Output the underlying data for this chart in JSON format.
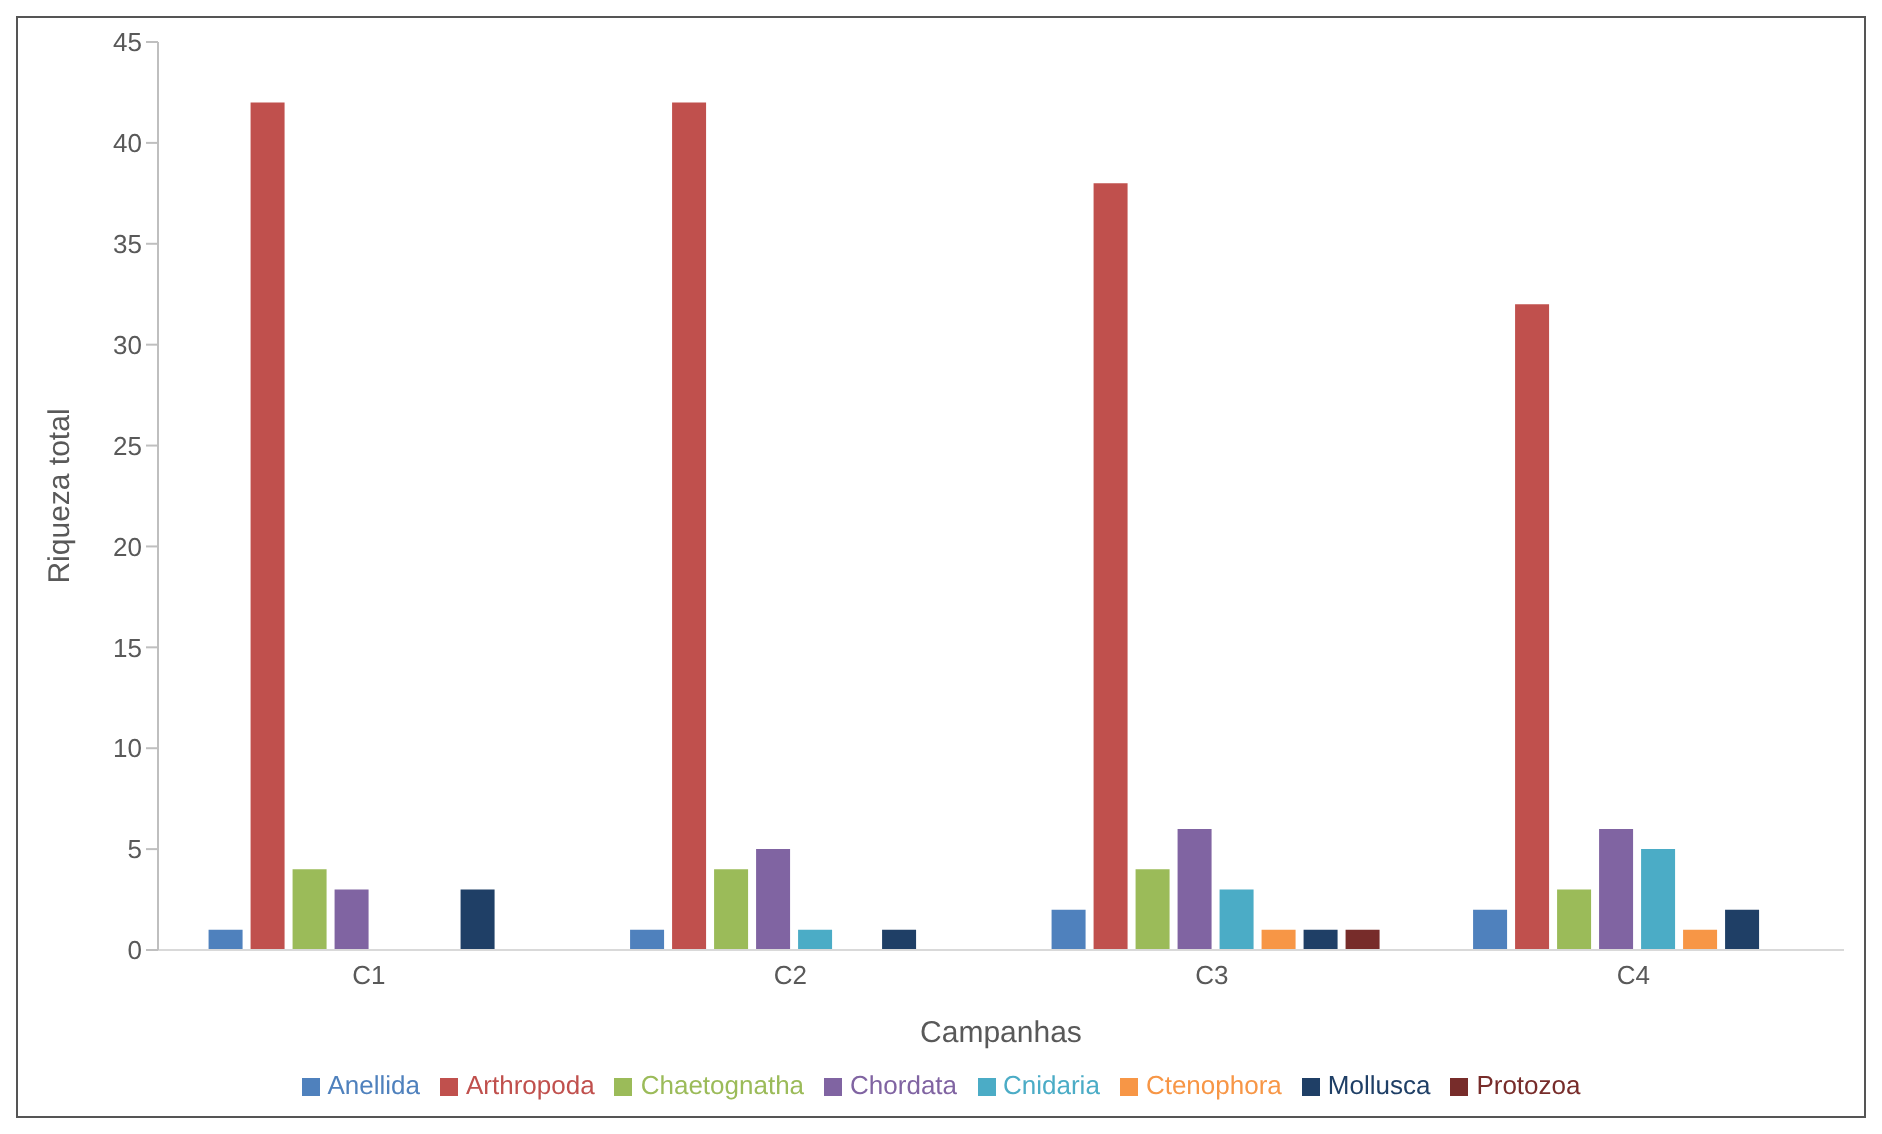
{
  "chart_data": {
    "type": "bar",
    "xlabel": "Campanhas",
    "ylabel": "Riqueza total",
    "categories": [
      "C1",
      "C2",
      "C3",
      "C4"
    ],
    "series": [
      {
        "name": "Anellida",
        "color": "#4f81bd",
        "values": [
          1,
          1,
          2,
          2
        ]
      },
      {
        "name": "Arthropoda",
        "color": "#c0504d",
        "values": [
          42,
          42,
          38,
          32
        ]
      },
      {
        "name": "Chaetognatha",
        "color": "#9bbb59",
        "values": [
          4,
          4,
          4,
          3
        ]
      },
      {
        "name": "Chordata",
        "color": "#8064a2",
        "values": [
          3,
          5,
          6,
          6
        ]
      },
      {
        "name": "Cnidaria",
        "color": "#4bacc6",
        "values": [
          0,
          1,
          3,
          5
        ]
      },
      {
        "name": "Ctenophora",
        "color": "#f79646",
        "values": [
          0,
          0,
          1,
          1
        ]
      },
      {
        "name": "Mollusca",
        "color": "#1f3f66",
        "values": [
          3,
          1,
          1,
          2
        ]
      },
      {
        "name": "Protozoa",
        "color": "#772c2a",
        "values": [
          0,
          0,
          1,
          0
        ]
      }
    ],
    "ylim": [
      0,
      45
    ],
    "yticks": [
      0,
      5,
      10,
      15,
      20,
      25,
      30,
      35,
      40,
      45
    ],
    "grid": false,
    "legend": "bottom"
  }
}
